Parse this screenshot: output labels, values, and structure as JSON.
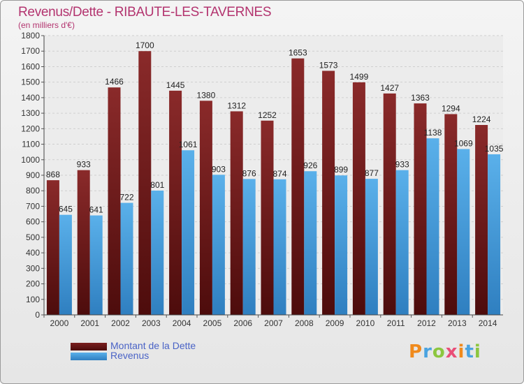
{
  "header": {
    "title": "Revenus/Dette - RIBAUTE-LES-TAVERNES",
    "subtitle": "(en milliers d'€)"
  },
  "legend": [
    {
      "label": "Montant de la Dette",
      "color": "#7a1f1f"
    },
    {
      "label": "Revenus",
      "color": "#4aa3e0"
    }
  ],
  "brand": {
    "logo_text": "Proxiti"
  },
  "colors": {
    "dette": "#7a1f1f",
    "revenus": "#4aa3e0",
    "title": "#b3346f",
    "legend_text": "#4a63c6"
  },
  "chart_data": {
    "type": "bar",
    "title": "Revenus/Dette - RIBAUTE-LES-TAVERNES",
    "ylabel": "(en milliers d'€)",
    "xlabel": "",
    "ylim": [
      0,
      1800
    ],
    "yticks": [
      0,
      100,
      200,
      300,
      400,
      500,
      600,
      700,
      800,
      900,
      1000,
      1100,
      1200,
      1300,
      1400,
      1500,
      1600,
      1700,
      1800
    ],
    "grid": true,
    "legend_position": "bottom-left",
    "categories": [
      "2000",
      "2001",
      "2002",
      "2003",
      "2004",
      "2005",
      "2006",
      "2007",
      "2008",
      "2009",
      "2010",
      "2011",
      "2012",
      "2013",
      "2014"
    ],
    "series": [
      {
        "name": "Montant de la Dette",
        "values": [
          868,
          933,
          1466,
          1700,
          1445,
          1380,
          1312,
          1252,
          1653,
          1573,
          1499,
          1427,
          1363,
          1294,
          1224
        ]
      },
      {
        "name": "Revenus",
        "values": [
          645,
          641,
          722,
          801,
          1061,
          903,
          876,
          874,
          926,
          899,
          877,
          933,
          1138,
          1069,
          1035
        ]
      }
    ]
  }
}
